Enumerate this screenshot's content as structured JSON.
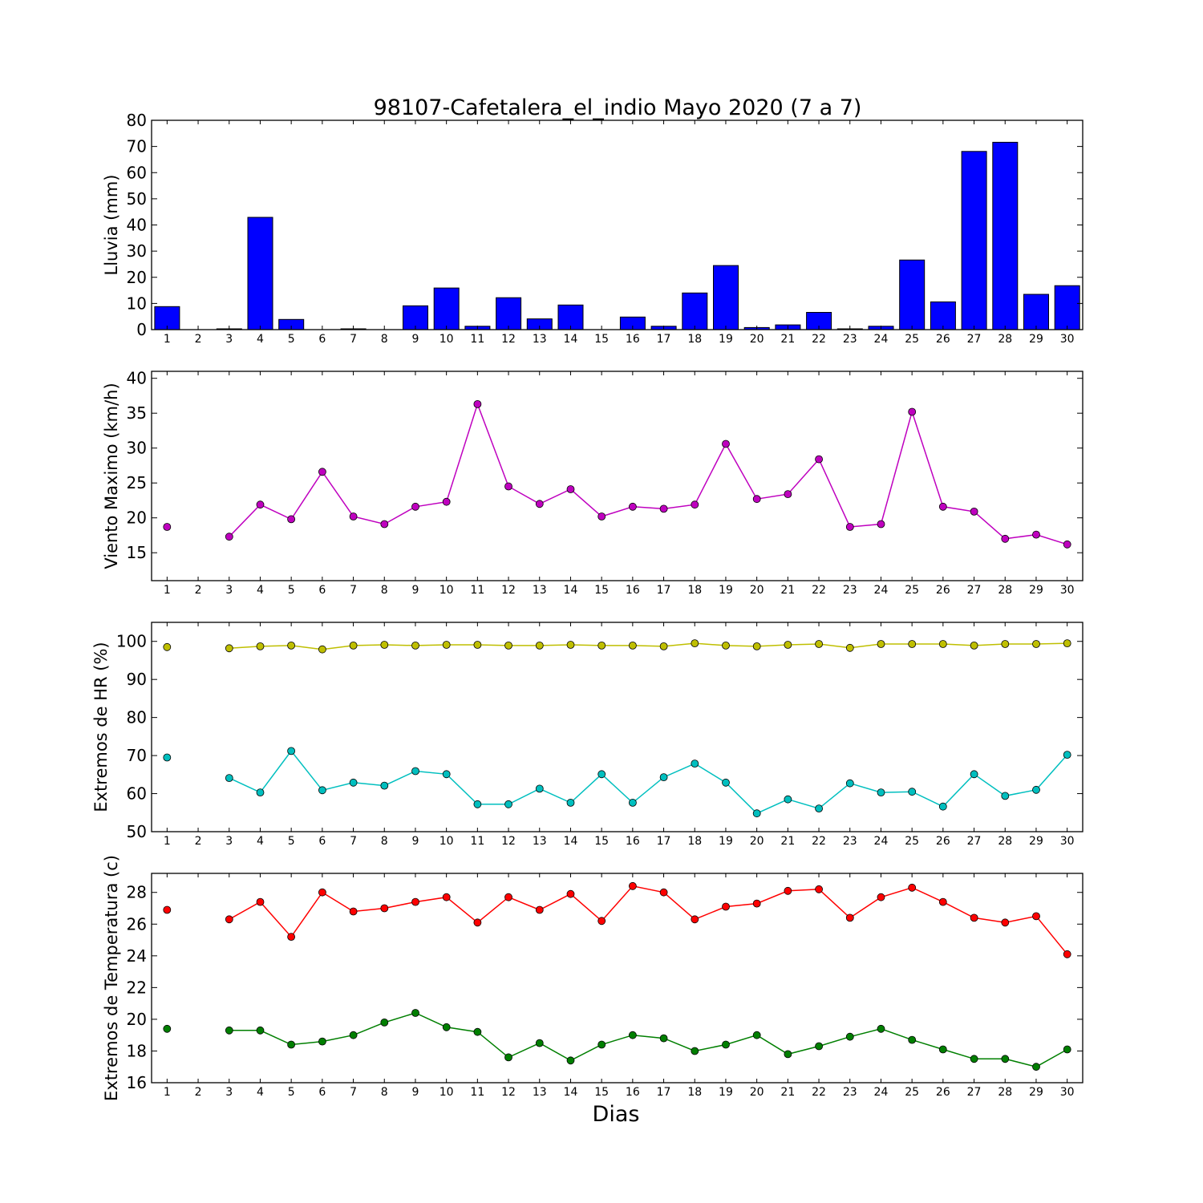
{
  "chart_data": [
    {
      "type": "bar",
      "title": "98107-Cafetalera_el_indio Mayo 2020  (7 a 7)",
      "ylabel": "Lluvia (mm)",
      "xlabel": "",
      "ylim": [
        0,
        80
      ],
      "yticks": [
        0,
        10,
        20,
        30,
        40,
        50,
        60,
        70,
        80
      ],
      "categories": [
        1,
        2,
        3,
        4,
        5,
        6,
        7,
        8,
        9,
        10,
        11,
        12,
        13,
        14,
        15,
        16,
        17,
        18,
        19,
        20,
        21,
        22,
        23,
        24,
        25,
        26,
        27,
        28,
        29,
        30
      ],
      "values": [
        8.8,
        0,
        0.3,
        42.9,
        3.9,
        0,
        0.3,
        0,
        9.1,
        15.9,
        1.3,
        12.2,
        4.1,
        9.4,
        0,
        4.8,
        1.3,
        14.0,
        24.5,
        0.8,
        1.8,
        6.6,
        0.3,
        1.3,
        26.6,
        10.6,
        68.1,
        71.6,
        13.5,
        16.8
      ],
      "colors": {
        "bar": "#0000ff"
      }
    },
    {
      "type": "line",
      "title": "",
      "ylabel": "Viento Maximo (km/h)",
      "xlabel": "",
      "ylim": [
        11,
        41
      ],
      "yticks": [
        15,
        20,
        25,
        30,
        35,
        40
      ],
      "x": [
        1,
        2,
        3,
        4,
        5,
        6,
        7,
        8,
        9,
        10,
        11,
        12,
        13,
        14,
        15,
        16,
        17,
        18,
        19,
        20,
        21,
        22,
        23,
        24,
        25,
        26,
        27,
        28,
        29,
        30
      ],
      "series": [
        {
          "values": [
            18.7,
            null,
            17.3,
            21.9,
            19.8,
            26.6,
            20.2,
            19.1,
            21.6,
            22.3,
            36.3,
            24.5,
            22.0,
            24.1,
            20.2,
            21.6,
            21.3,
            21.9,
            30.6,
            22.7,
            23.4,
            28.4,
            18.7,
            19.1,
            35.2,
            21.6,
            20.9,
            17.0,
            17.6,
            16.2
          ],
          "color": "#bf00bf"
        }
      ]
    },
    {
      "type": "line",
      "title": "",
      "ylabel": "Extremos de HR (%)",
      "xlabel": "",
      "ylim": [
        50,
        105
      ],
      "yticks": [
        50,
        60,
        70,
        80,
        90,
        100
      ],
      "x": [
        1,
        2,
        3,
        4,
        5,
        6,
        7,
        8,
        9,
        10,
        11,
        12,
        13,
        14,
        15,
        16,
        17,
        18,
        19,
        20,
        21,
        22,
        23,
        24,
        25,
        26,
        27,
        28,
        29,
        30
      ],
      "series": [
        {
          "values": [
            98.5,
            null,
            98.2,
            98.7,
            98.9,
            97.9,
            98.9,
            99.1,
            98.9,
            99.1,
            99.1,
            98.9,
            98.9,
            99.1,
            98.9,
            98.9,
            98.7,
            99.5,
            98.9,
            98.7,
            99.1,
            99.3,
            98.3,
            99.3,
            99.3,
            99.3,
            98.9,
            99.3,
            99.3,
            99.5
          ],
          "color": "#bfbf00"
        },
        {
          "values": [
            69.5,
            null,
            64.1,
            60.3,
            71.2,
            60.9,
            62.9,
            62.1,
            65.9,
            65.1,
            57.2,
            57.2,
            61.3,
            57.6,
            65.1,
            57.6,
            64.3,
            67.9,
            62.9,
            54.8,
            58.5,
            56.1,
            62.7,
            60.3,
            60.5,
            56.6,
            65.1,
            59.4,
            61.0,
            70.2
          ],
          "color": "#00bfbf"
        }
      ]
    },
    {
      "type": "line",
      "title": "",
      "ylabel": "Extremos de Temperatura (c)",
      "xlabel": "Dias",
      "ylim": [
        16,
        29.2
      ],
      "yticks": [
        16,
        18,
        20,
        22,
        24,
        26,
        28
      ],
      "x": [
        1,
        2,
        3,
        4,
        5,
        6,
        7,
        8,
        9,
        10,
        11,
        12,
        13,
        14,
        15,
        16,
        17,
        18,
        19,
        20,
        21,
        22,
        23,
        24,
        25,
        26,
        27,
        28,
        29,
        30
      ],
      "series": [
        {
          "values": [
            26.9,
            null,
            26.3,
            27.4,
            25.2,
            28.0,
            26.8,
            27.0,
            27.4,
            27.7,
            26.1,
            27.7,
            26.9,
            27.9,
            26.2,
            28.4,
            28.0,
            26.3,
            27.1,
            27.3,
            28.1,
            28.2,
            26.4,
            27.7,
            28.3,
            27.4,
            26.4,
            26.1,
            26.5,
            24.1
          ],
          "color": "#ff0000"
        },
        {
          "values": [
            19.4,
            null,
            19.3,
            19.3,
            18.4,
            18.6,
            19.0,
            19.8,
            20.4,
            19.5,
            19.2,
            17.6,
            18.5,
            17.4,
            18.4,
            19.0,
            18.8,
            18.0,
            18.4,
            19.0,
            17.8,
            18.3,
            18.9,
            19.4,
            18.7,
            18.1,
            17.5,
            17.5,
            17.0,
            18.1
          ],
          "color": "#007f00"
        }
      ]
    }
  ]
}
